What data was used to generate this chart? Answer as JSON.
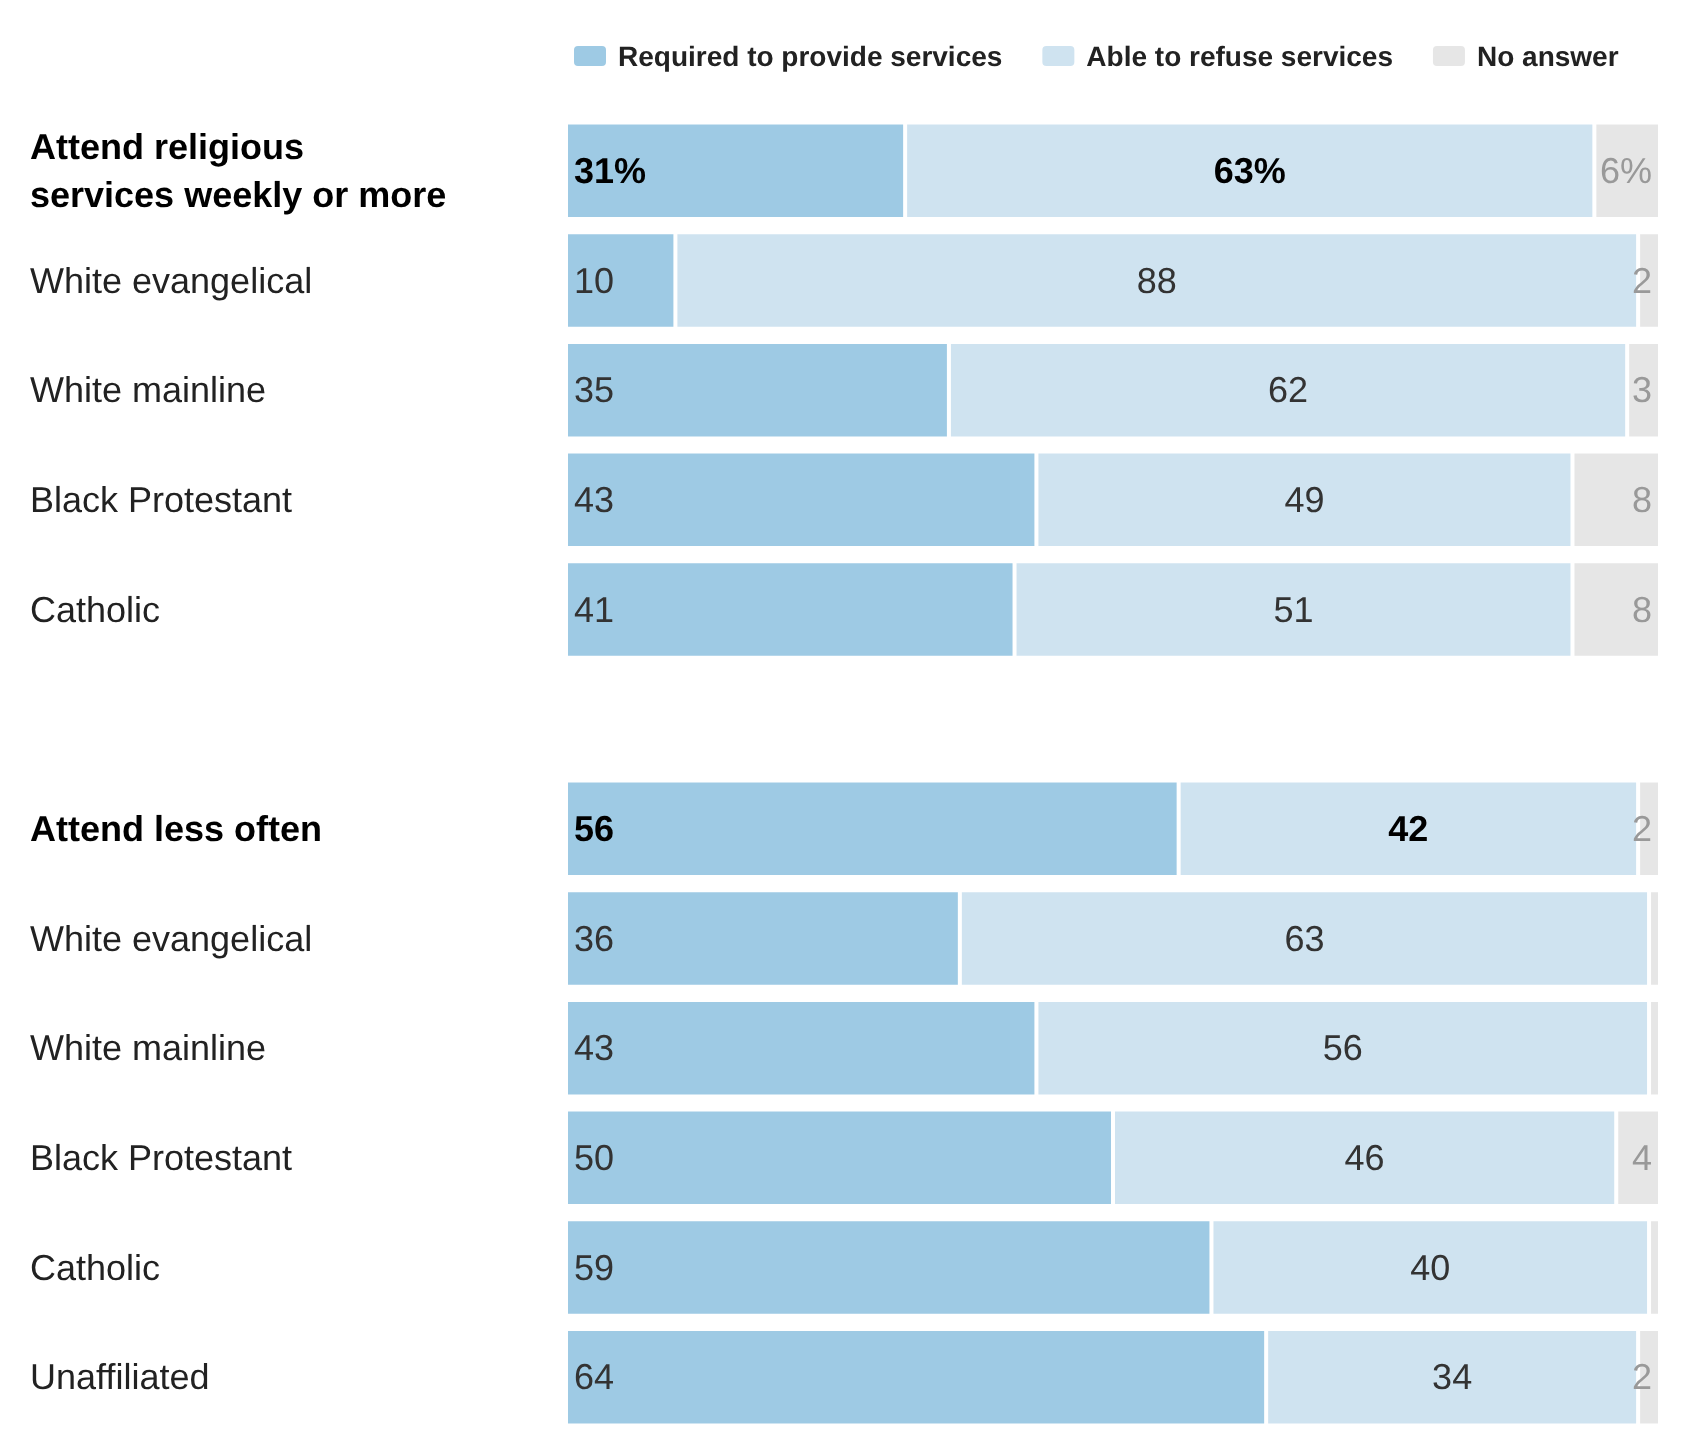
{
  "chart_data": {
    "type": "bar",
    "orientation": "horizontal",
    "stacked": true,
    "legend": "top",
    "categories": [
      "Attend religious\nservices weekly or more",
      "White evangelical",
      "White mainline",
      "Black Protestant",
      "Catholic",
      null,
      "Attend less often",
      "White evangelical",
      "White mainline",
      "Black Protestant",
      "Catholic",
      "Unaffiliated"
    ],
    "xlim": [
      0,
      100
    ],
    "tick_labels": "y",
    "grid": false,
    "series": [
      {
        "name": "Required to provide services",
        "color": "#9ecae4",
        "values": [
          31,
          10,
          35,
          43,
          41,
          null,
          56,
          36,
          43,
          50,
          59,
          64
        ],
        "value_labels": [
          "31%",
          "10",
          "35",
          "43",
          "41",
          null,
          "56",
          "36",
          "43",
          "50",
          "59",
          "64"
        ]
      },
      {
        "name": "Able to refuse services",
        "color": "#cfe3f0",
        "values": [
          63,
          88,
          62,
          49,
          51,
          null,
          42,
          63,
          56,
          46,
          40,
          34
        ],
        "value_labels": [
          "63%",
          "88",
          "62",
          "49",
          "51",
          null,
          "42",
          "63",
          "56",
          "46",
          "40",
          "34"
        ]
      },
      {
        "name": "No answer",
        "color": "#e6e6e6",
        "values": [
          6,
          2,
          3,
          8,
          8,
          null,
          2,
          1,
          1,
          4,
          1,
          2
        ],
        "value_labels": [
          "6%",
          "2",
          "3",
          "8",
          "8",
          null,
          "2",
          null,
          null,
          "4",
          null,
          "2"
        ]
      }
    ]
  }
}
